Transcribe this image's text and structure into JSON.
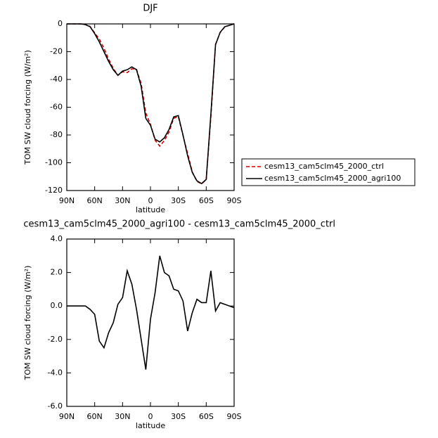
{
  "chart_data": [
    {
      "type": "line",
      "title": "DJF",
      "xlabel": "latitude",
      "ylabel": "TOM SW cloud forcing (W/m²)",
      "x": [
        90,
        85,
        80,
        75,
        70,
        65,
        60,
        55,
        50,
        45,
        40,
        35,
        30,
        25,
        20,
        15,
        10,
        5,
        0,
        -5,
        -10,
        -15,
        -20,
        -25,
        -30,
        -35,
        -40,
        -45,
        -50,
        -55,
        -60,
        -65,
        -70,
        -75,
        -80,
        -85,
        -90
      ],
      "series": [
        {
          "name": "cesm13_cam5clm45_2000_ctrl",
          "color": "#cc0000",
          "linestyle": "dashed",
          "values": [
            0,
            0,
            0,
            0,
            -0.5,
            -1.8,
            -6.5,
            -10.9,
            -17.5,
            -25.4,
            -32,
            -37.1,
            -34.5,
            -35.1,
            -32.3,
            -32.8,
            -43,
            -64.2,
            -72.2,
            -83.8,
            -88,
            -84,
            -77.8,
            -68,
            -66.9,
            -80.3,
            -93.5,
            -106.6,
            -113.4,
            -115.2,
            -112.2,
            -67.1,
            -14.7,
            -6.2,
            -2.1,
            -1,
            0.1
          ]
        },
        {
          "name": "cesm13_cam5clm45_2000_agri100",
          "color": "#000000",
          "linestyle": "solid",
          "values": [
            0,
            0,
            0,
            0,
            -0.5,
            -2,
            -7,
            -13,
            -20,
            -27,
            -33,
            -37,
            -34,
            -33,
            -31,
            -33,
            -45,
            -68,
            -73,
            -83,
            -85,
            -82,
            -76,
            -67,
            -66,
            -80,
            -95,
            -107,
            -113,
            -115,
            -112,
            -65,
            -15,
            -6,
            -2,
            -1,
            0
          ]
        }
      ],
      "xlim": [
        90,
        -90
      ],
      "xticks": [
        {
          "value": 90,
          "label": "90N"
        },
        {
          "value": 60,
          "label": "60N"
        },
        {
          "value": 30,
          "label": "30N"
        },
        0,
        {
          "value": -30,
          "label": "30S"
        },
        {
          "value": -60,
          "label": "60S"
        },
        {
          "value": -90,
          "label": "90S"
        }
      ],
      "ylim": [
        -120,
        0
      ],
      "yticks": [
        0,
        -20,
        -40,
        -60,
        -80,
        -100,
        -120
      ]
    },
    {
      "type": "line",
      "title": "cesm13_cam5clm45_2000_agri100 - cesm13_cam5clm45_2000_ctrl",
      "xlabel": "latitude",
      "ylabel": "TOM SW cloud forcing (W/m²)",
      "x": [
        90,
        85,
        80,
        75,
        70,
        65,
        60,
        55,
        50,
        45,
        40,
        35,
        30,
        25,
        20,
        15,
        10,
        5,
        0,
        -5,
        -10,
        -15,
        -20,
        -25,
        -30,
        -35,
        -40,
        -45,
        -50,
        -55,
        -60,
        -65,
        -70,
        -75,
        -80,
        -85,
        -90
      ],
      "color": "#000000",
      "values": [
        0,
        0,
        0,
        0,
        0,
        -0.2,
        -0.5,
        -2.1,
        -2.5,
        -1.6,
        -1.0,
        0.1,
        0.5,
        2.1,
        1.3,
        -0.2,
        -2.0,
        -3.8,
        -0.8,
        0.8,
        3.0,
        2.0,
        1.8,
        1.0,
        0.9,
        0.3,
        -1.5,
        -0.4,
        0.4,
        0.2,
        0.2,
        2.1,
        -0.3,
        0.2,
        0.1,
        0.0,
        -0.1
      ],
      "xlim": [
        90,
        -90
      ],
      "xticks": [
        {
          "value": 90,
          "label": "90N"
        },
        {
          "value": 60,
          "label": "60N"
        },
        {
          "value": 30,
          "label": "30N"
        },
        0,
        {
          "value": -30,
          "label": "30S"
        },
        {
          "value": -60,
          "label": "60S"
        },
        {
          "value": -90,
          "label": "90S"
        }
      ],
      "ylim": [
        -6,
        4
      ],
      "yticks": [
        {
          "value": 4,
          "label": "4.0"
        },
        {
          "value": 2,
          "label": "2.0"
        },
        {
          "value": 0,
          "label": "0.0"
        },
        {
          "value": -2,
          "label": "-2.0"
        },
        {
          "value": -4,
          "label": "-4.0"
        },
        {
          "value": -6,
          "label": "-6.0"
        }
      ]
    }
  ]
}
